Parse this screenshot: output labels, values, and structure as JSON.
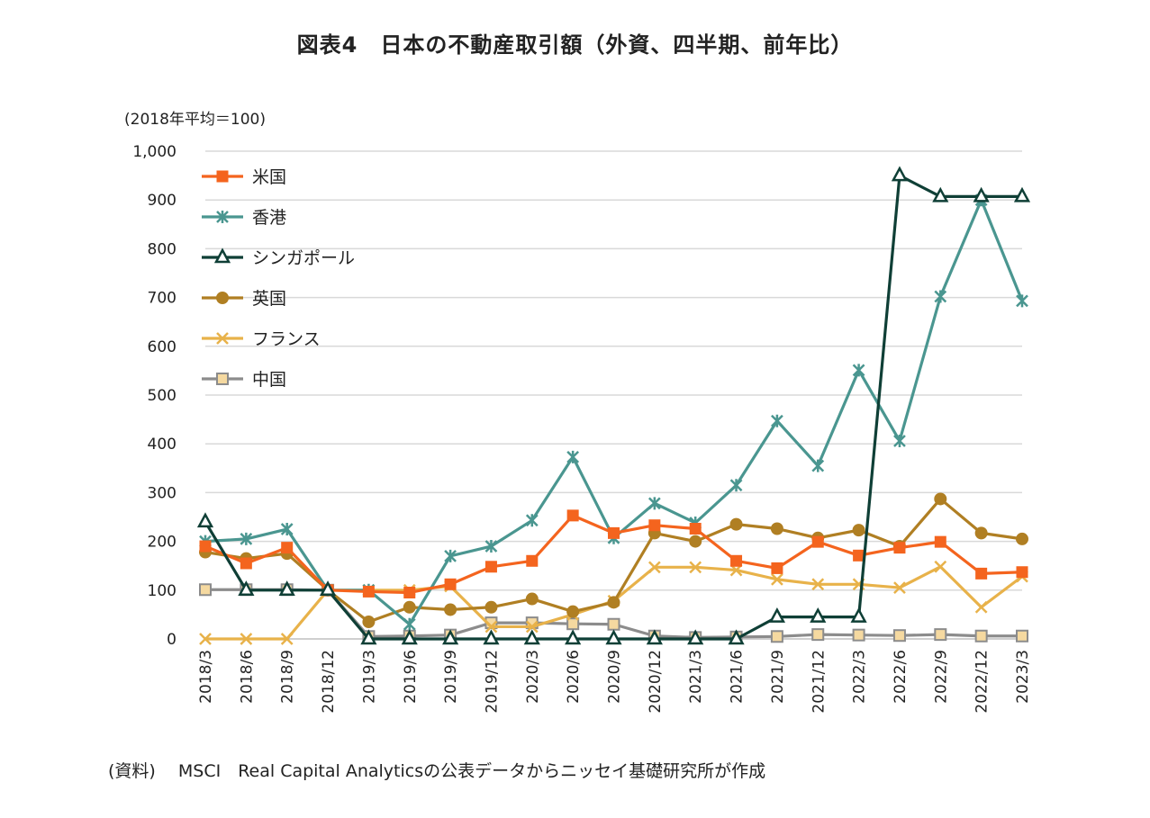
{
  "title": "図表4　日本の不動産取引額（外資、四半期、前年比）",
  "unit_label": "(2018年平均＝100)",
  "source": "(資料)　 MSCI　Real Capital Analyticsの公表データからニッセイ基礎研究所が作成",
  "chart_data": {
    "type": "line",
    "title": "図表4　日本の不動産取引額（外資、四半期、前年比）",
    "ylabel": "(2018年平均＝100)",
    "xlabel": "",
    "ylim": [
      0,
      1000
    ],
    "yticks": [
      0,
      100,
      200,
      300,
      400,
      500,
      600,
      700,
      800,
      900,
      1000
    ],
    "ytick_labels": [
      "0",
      "100",
      "200",
      "300",
      "400",
      "500",
      "600",
      "700",
      "800",
      "900",
      "1,000"
    ],
    "grid": true,
    "legend_position": "top-left",
    "categories": [
      "2018/3",
      "2018/6",
      "2018/9",
      "2018/12",
      "2019/3",
      "2019/6",
      "2019/9",
      "2019/12",
      "2020/3",
      "2020/6",
      "2020/9",
      "2020/12",
      "2021/3",
      "2021/6",
      "2021/9",
      "2021/12",
      "2022/3",
      "2022/6",
      "2022/9",
      "2022/12",
      "2023/3"
    ],
    "series": [
      {
        "name": "米国",
        "color": "#F4641E",
        "marker": "square-filled",
        "values": [
          190,
          155,
          187,
          100,
          97,
          95,
          112,
          148,
          160,
          253,
          217,
          233,
          226,
          160,
          145,
          199,
          171,
          187,
          199,
          134,
          137
        ]
      },
      {
        "name": "香港",
        "color": "#4A9690",
        "marker": "star-x",
        "values": [
          200,
          205,
          225,
          100,
          100,
          30,
          170,
          190,
          243,
          373,
          207,
          278,
          238,
          315,
          447,
          355,
          551,
          406,
          702,
          900,
          693
        ]
      },
      {
        "name": "シンガポール",
        "color": "#0F3F36",
        "marker": "triangle-open",
        "values": [
          240,
          100,
          100,
          100,
          0,
          0,
          0,
          0,
          0,
          0,
          0,
          0,
          0,
          0,
          45,
          45,
          45,
          950,
          907,
          907,
          907
        ]
      },
      {
        "name": "英国",
        "color": "#B07F23",
        "marker": "circle-filled",
        "values": [
          178,
          165,
          175,
          100,
          35,
          65,
          60,
          65,
          82,
          56,
          75,
          217,
          200,
          235,
          226,
          207,
          223,
          190,
          287,
          217,
          205
        ]
      },
      {
        "name": "フランス",
        "color": "#E8B24A",
        "marker": "x",
        "values": [
          0,
          0,
          0,
          100,
          100,
          100,
          108,
          25,
          25,
          50,
          78,
          147,
          147,
          141,
          122,
          112,
          112,
          105,
          148,
          65,
          128
        ]
      },
      {
        "name": "中国",
        "color": "#8C8C8C",
        "marker": "square-open",
        "values": [
          101,
          101,
          101,
          100,
          5,
          6,
          8,
          33,
          33,
          31,
          30,
          6,
          3,
          4,
          5,
          9,
          8,
          7,
          9,
          6,
          6
        ]
      }
    ]
  }
}
